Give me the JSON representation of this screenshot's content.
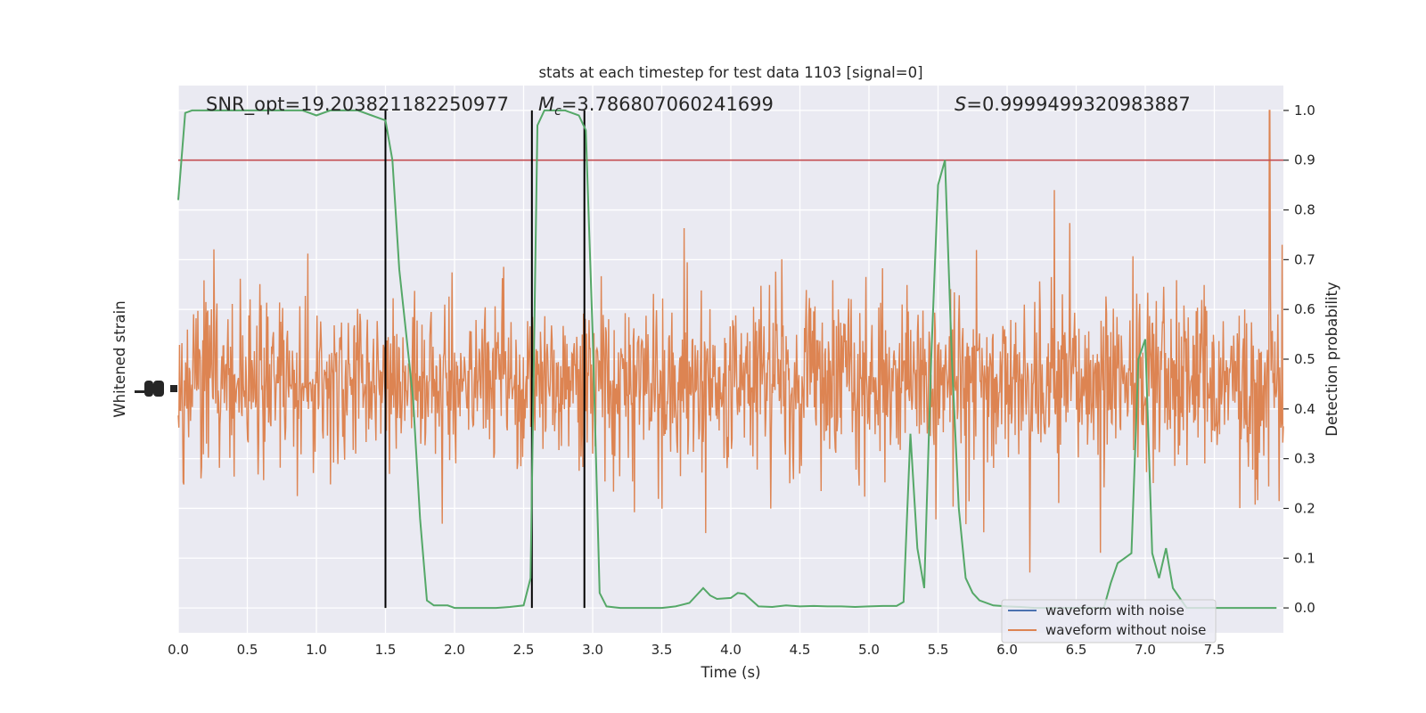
{
  "chart_data": {
    "type": "line",
    "title": "stats at each timestep for test data 1103 [signal=0]",
    "xlabel": "Time (s)",
    "ylabel_left": "Whitened strain",
    "ylabel_right": "Detection probability",
    "xlim": [
      0.0,
      8.0
    ],
    "ylim_right": [
      -0.05,
      1.05
    ],
    "x_ticks": [
      "0.0",
      "0.5",
      "1.0",
      "1.5",
      "2.0",
      "2.5",
      "3.0",
      "3.5",
      "4.0",
      "4.5",
      "5.0",
      "5.5",
      "6.0",
      "6.5",
      "7.0",
      "7.5"
    ],
    "y_ticks_right": [
      "0.0",
      "0.1",
      "0.2",
      "0.3",
      "0.4",
      "0.5",
      "0.6",
      "0.7",
      "0.8",
      "0.9",
      "1.0"
    ],
    "grid": true,
    "legend_position": "lower-right",
    "annotations": {
      "snr": "SNR_opt=19.203821182250977",
      "mc_symbol": "M",
      "mc_sub": "c",
      "mc_value": "=3.786807060241699",
      "s_symbol": "S",
      "s_value": "=0.9999499320983887"
    },
    "threshold": 0.9,
    "vertical_lines": [
      1.5,
      2.56,
      2.94
    ],
    "series": [
      {
        "name": "waveform with noise",
        "color": "#4c72b0",
        "values": []
      },
      {
        "name": "waveform without noise",
        "color": "#dd8452",
        "description_values": "noise-like strain around 0.45 on right-axis scale, spikes up to ~0.82 and down to ~0.03, peak spike ~1.0 near t=7.9"
      },
      {
        "name": "",
        "color": "#55a868",
        "x": [
          0.0,
          0.05,
          0.1,
          0.2,
          0.3,
          0.4,
          0.5,
          0.6,
          0.7,
          0.8,
          0.9,
          1.0,
          1.1,
          1.2,
          1.3,
          1.4,
          1.5,
          1.55,
          1.6,
          1.65,
          1.7,
          1.75,
          1.8,
          1.85,
          1.9,
          1.95,
          2.0,
          2.1,
          2.2,
          2.3,
          2.4,
          2.5,
          2.55,
          2.6,
          2.65,
          2.7,
          2.8,
          2.9,
          2.95,
          3.0,
          3.05,
          3.1,
          3.2,
          3.3,
          3.4,
          3.5,
          3.6,
          3.7,
          3.8,
          3.85,
          3.9,
          4.0,
          4.05,
          4.1,
          4.2,
          4.3,
          4.4,
          4.5,
          4.6,
          4.7,
          4.8,
          4.9,
          5.0,
          5.1,
          5.2,
          5.25,
          5.3,
          5.35,
          5.4,
          5.45,
          5.5,
          5.55,
          5.6,
          5.65,
          5.7,
          5.75,
          5.8,
          5.9,
          6.0,
          6.1,
          6.2,
          6.3,
          6.4,
          6.5,
          6.6,
          6.7,
          6.75,
          6.8,
          6.85,
          6.9,
          6.95,
          7.0,
          7.05,
          7.1,
          7.15,
          7.2,
          7.3,
          7.4,
          7.5,
          7.6,
          7.7,
          7.8,
          7.9,
          7.95
        ],
        "values": [
          0.82,
          0.995,
          1.0,
          1.0,
          1.0,
          1.0,
          1.0,
          1.0,
          1.0,
          1.0,
          1.0,
          0.99,
          1.0,
          1.0,
          1.0,
          0.99,
          0.98,
          0.9,
          0.68,
          0.55,
          0.42,
          0.18,
          0.015,
          0.005,
          0.005,
          0.005,
          0.0,
          0.0,
          0.0,
          0.0,
          0.002,
          0.005,
          0.06,
          0.97,
          1.0,
          1.0,
          1.0,
          0.99,
          0.96,
          0.55,
          0.03,
          0.003,
          0.0,
          0.0,
          0.0,
          0.0,
          0.003,
          0.01,
          0.04,
          0.025,
          0.018,
          0.02,
          0.03,
          0.028,
          0.003,
          0.002,
          0.005,
          0.003,
          0.004,
          0.003,
          0.003,
          0.002,
          0.003,
          0.004,
          0.004,
          0.012,
          0.35,
          0.12,
          0.04,
          0.5,
          0.85,
          0.9,
          0.5,
          0.2,
          0.06,
          0.03,
          0.015,
          0.005,
          0.003,
          0.002,
          0.0,
          0.0,
          0.0,
          0.0,
          0.0,
          0.0,
          0.05,
          0.09,
          0.1,
          0.11,
          0.5,
          0.54,
          0.11,
          0.06,
          0.12,
          0.04,
          0.0,
          0.0,
          0.0,
          0.0,
          0.0,
          0.0,
          0.0,
          0.0
        ]
      }
    ]
  }
}
